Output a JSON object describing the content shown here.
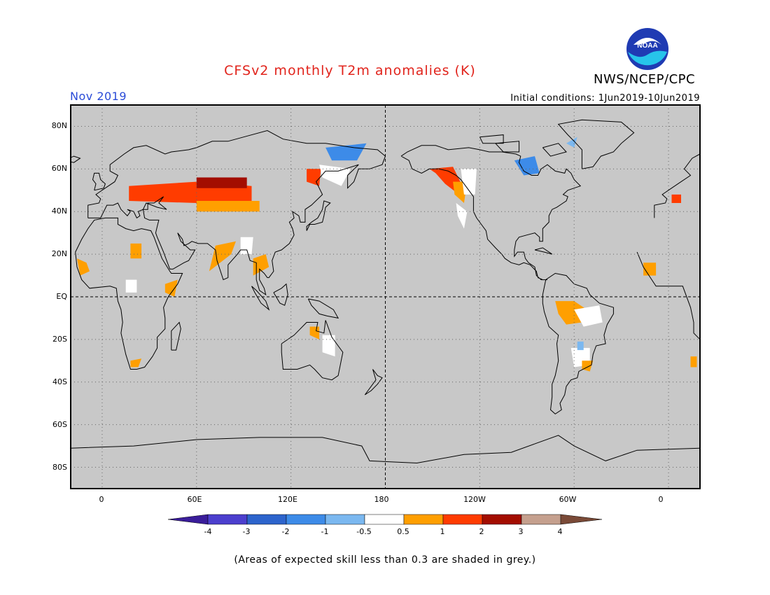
{
  "title": "CFSv2 monthly T2m anomalies (K)",
  "org": "NWS/NCEP/CPC",
  "logo_text": "NOAA",
  "valid_month": "Nov 2019",
  "initial_conditions": "Initial conditions: 1Jun2019-10Jun2019",
  "footnote": "(Areas of expected skill less than 0.3 are shaded in grey.)",
  "map": {
    "projection": "cylindrical equidistant, centered on 180",
    "lon_range": [
      -20,
      380
    ],
    "lat_range": [
      -90,
      90
    ],
    "background": "#c8c8c8",
    "y_axis_labels": [
      "80N",
      "60N",
      "40N",
      "20N",
      "EQ",
      "20S",
      "40S",
      "60S",
      "80S"
    ],
    "x_axis_labels": [
      "0",
      "60E",
      "120E",
      "180",
      "120W",
      "60W",
      "0"
    ]
  },
  "colorbar": {
    "ticks": [
      "-4",
      "-3",
      "-2",
      "-1",
      "-0.5",
      "0.5",
      "1",
      "2",
      "3",
      "4"
    ],
    "colors": [
      "#3a1d9a",
      "#4c3fce",
      "#2d64cc",
      "#3d8be8",
      "#7bb8f0",
      "#ffffff",
      "#ff9f00",
      "#ff3c00",
      "#a30d00",
      "#c5a08e",
      "#7a4a37"
    ]
  },
  "anomaly_regions": [
    {
      "region": "central Siberia",
      "category": "2 to 3"
    },
    {
      "region": "western Russia / Kazakhstan",
      "category": "1 to 2"
    },
    {
      "region": "Pacific Northwest & western Canada",
      "category": "1 to 2"
    },
    {
      "region": "Hudson Bay & eastern Siberia",
      "category": "-1 to -2"
    },
    {
      "region": "Amazon basin",
      "category": "0.5 to 1"
    },
    {
      "region": "India / Southeast Asia",
      "category": "0.5 to 1"
    }
  ]
}
